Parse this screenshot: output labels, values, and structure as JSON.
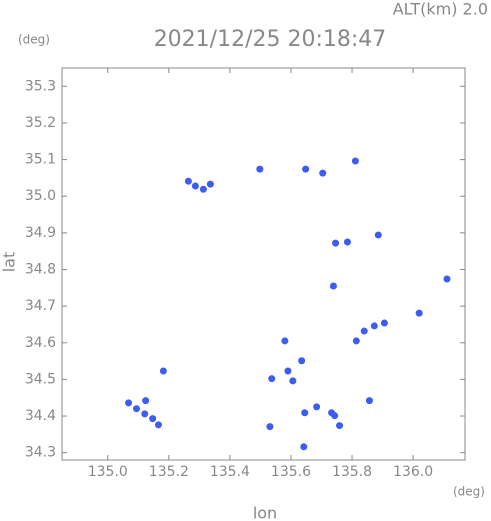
{
  "chart_data": {
    "type": "scatter",
    "title": "2021/12/25 20:18:47",
    "subtitle": "ALT(km) 2.0",
    "y_unit": "(deg)",
    "x_unit": "(deg)",
    "x_label": "lon",
    "y_label": "lat",
    "color": "#3d5cf0",
    "x": [
      135.068,
      135.094,
      135.121,
      135.147,
      135.166,
      135.124,
      135.182,
      135.264,
      135.287,
      135.313,
      135.336,
      135.498,
      135.648,
      135.704,
      135.811,
      135.746,
      135.785,
      135.886,
      136.111,
      135.739,
      136.02,
      135.873,
      135.84,
      135.906,
      135.814,
      135.58,
      135.59,
      135.606,
      135.537,
      135.635,
      135.684,
      135.645,
      135.733,
      135.759,
      135.743,
      135.642,
      135.531,
      135.857
    ],
    "values": [
      34.436,
      34.42,
      34.406,
      34.393,
      34.376,
      34.442,
      34.523,
      35.041,
      35.028,
      35.019,
      35.033,
      35.074,
      35.074,
      35.063,
      35.096,
      34.872,
      34.875,
      34.894,
      34.774,
      34.755,
      34.681,
      34.646,
      34.632,
      34.654,
      34.605,
      34.605,
      34.523,
      34.496,
      34.502,
      34.551,
      34.425,
      34.409,
      34.409,
      34.374,
      34.401,
      34.316,
      34.371,
      34.442
    ],
    "xlim": [
      134.85,
      136.17
    ],
    "ylim": [
      34.28,
      35.35
    ],
    "xticks": [
      {
        "value": 135.0,
        "label": "135.0"
      },
      {
        "value": 135.2,
        "label": "135.2"
      },
      {
        "value": 135.4,
        "label": "135.4"
      },
      {
        "value": 135.6,
        "label": "135.6"
      },
      {
        "value": 135.8,
        "label": "135.8"
      },
      {
        "value": 136.0,
        "label": "136.0"
      }
    ],
    "yticks": [
      {
        "value": 34.3,
        "label": "34.3"
      },
      34.4,
      34.5,
      34.6,
      34.7,
      34.8,
      34.9,
      {
        "value": 35.0,
        "label": "35.0"
      },
      35.1,
      35.2,
      35.3
    ]
  }
}
